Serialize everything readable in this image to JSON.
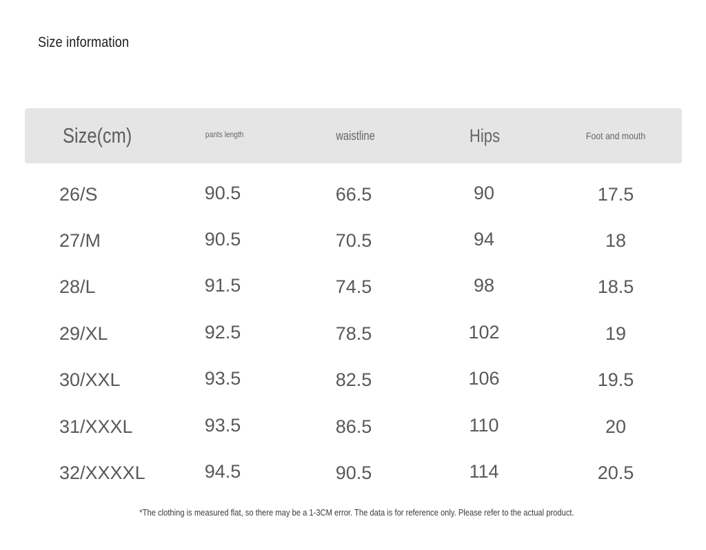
{
  "title": "Size information",
  "headers": [
    "Size(cm)",
    "pants length",
    "waistline",
    "Hips",
    "Foot and mouth"
  ],
  "rows": [
    [
      "26/S",
      "90.5",
      "66.5",
      "90",
      "17.5"
    ],
    [
      "27/M",
      "90.5",
      "70.5",
      "94",
      "18"
    ],
    [
      "28/L",
      "91.5",
      "74.5",
      "98",
      "18.5"
    ],
    [
      "29/XL",
      "92.5",
      "78.5",
      "102",
      "19"
    ],
    [
      "30/XXL",
      "93.5",
      "82.5",
      "106",
      "19.5"
    ],
    [
      "31/XXXL",
      "93.5",
      "86.5",
      "110",
      "20"
    ],
    [
      "32/XXXXL",
      "94.5",
      "90.5",
      "114",
      "20.5"
    ]
  ],
  "footnote": "*The clothing is measured flat, so there may be a 1-3CM error. The data is for reference only. Please refer to the actual product."
}
